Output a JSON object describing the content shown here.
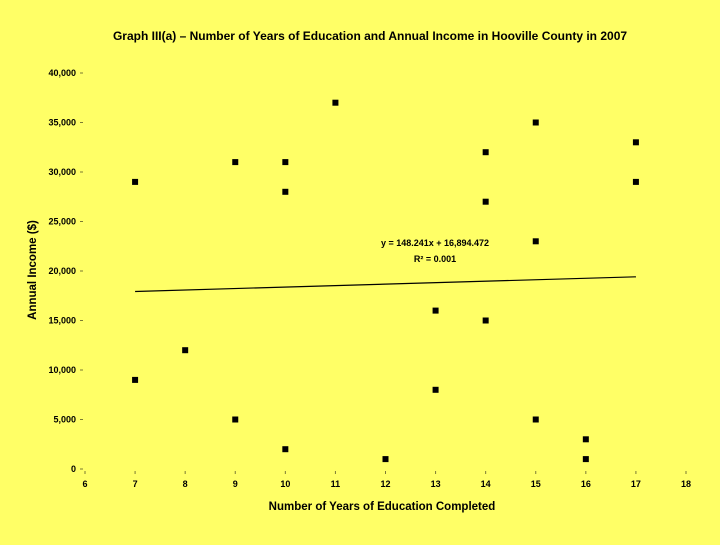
{
  "chart_data": {
    "type": "scatter",
    "title": "Graph III(a) – Number of Years of Education and Annual Income in Hooville County in 2007",
    "xlabel": "Number of Years of Education Completed",
    "ylabel": "Annual Income ($)",
    "xlim": [
      6,
      18
    ],
    "ylim": [
      0,
      40000
    ],
    "x_ticks": [
      "6",
      "7",
      "8",
      "9",
      "10",
      "11",
      "12",
      "13",
      "14",
      "15",
      "16",
      "17",
      "18"
    ],
    "y_ticks": [
      "0",
      "5,000",
      "10,000",
      "15,000",
      "20,000",
      "25,000",
      "30,000",
      "35,000",
      "40,000"
    ],
    "grid": false,
    "series": [
      {
        "points": [
          {
            "x": 7,
            "y": 29000
          },
          {
            "x": 7,
            "y": 9000
          },
          {
            "x": 8,
            "y": 12000
          },
          {
            "x": 9,
            "y": 31000
          },
          {
            "x": 9,
            "y": 5000
          },
          {
            "x": 10,
            "y": 31000
          },
          {
            "x": 10,
            "y": 28000
          },
          {
            "x": 10,
            "y": 2000
          },
          {
            "x": 11,
            "y": 37000
          },
          {
            "x": 12,
            "y": 1000
          },
          {
            "x": 13,
            "y": 16000
          },
          {
            "x": 13,
            "y": 8000
          },
          {
            "x": 14,
            "y": 32000
          },
          {
            "x": 14,
            "y": 27000
          },
          {
            "x": 14,
            "y": 15000
          },
          {
            "x": 15,
            "y": 35000
          },
          {
            "x": 15,
            "y": 23000
          },
          {
            "x": 15,
            "y": 5000
          },
          {
            "x": 16,
            "y": 3000
          },
          {
            "x": 16,
            "y": 1000
          },
          {
            "x": 17,
            "y": 33000
          },
          {
            "x": 17,
            "y": 29000
          }
        ],
        "color": "#000000"
      }
    ],
    "trendline": {
      "slope": 148.241,
      "intercept": 16894.472,
      "x_range": [
        7,
        17
      ],
      "equation": "y = 148.241x + 16,894.472",
      "r_squared": "R² = 0.001"
    }
  }
}
